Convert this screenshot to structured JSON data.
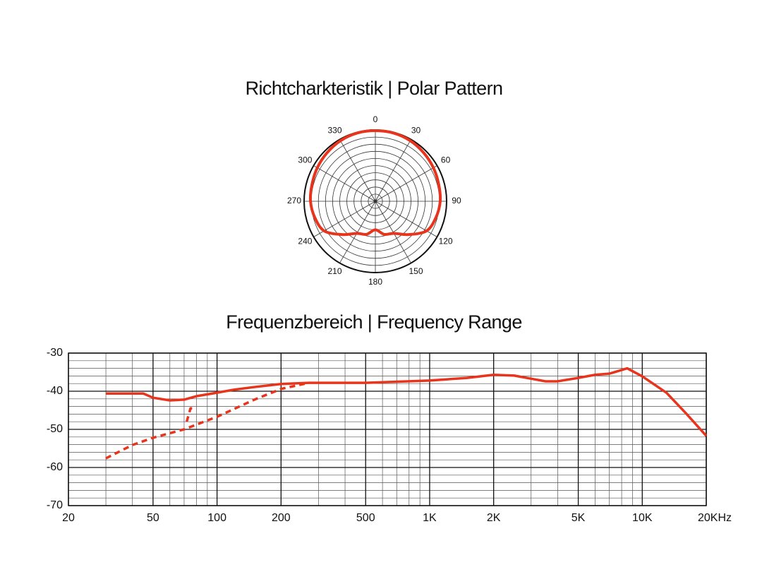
{
  "chart_data": [
    {
      "type": "polar",
      "title": "Richtcharkteristik | Polar Pattern",
      "angle_ticks": [
        0,
        30,
        60,
        90,
        120,
        150,
        180,
        210,
        240,
        270,
        300,
        330
      ],
      "rlim": [
        0,
        1
      ],
      "rticks": [
        0.1,
        0.2,
        0.3,
        0.4,
        0.5,
        0.6,
        0.7,
        0.8,
        0.9,
        1.0
      ],
      "angles": [
        0,
        15,
        30,
        45,
        60,
        75,
        90,
        105,
        120,
        135,
        150,
        165,
        180,
        195,
        210,
        225,
        240,
        255,
        270,
        285,
        300,
        315,
        330,
        345
      ],
      "values": [
        0.99,
        0.99,
        0.98,
        0.96,
        0.94,
        0.92,
        0.91,
        0.88,
        0.83,
        0.66,
        0.52,
        0.48,
        0.4,
        0.48,
        0.52,
        0.66,
        0.83,
        0.88,
        0.91,
        0.92,
        0.94,
        0.96,
        0.98,
        0.99
      ],
      "color": "#e8341c"
    },
    {
      "type": "line",
      "title": "Frequenzbereich | Frequency Range",
      "xscale": "log",
      "xlim": [
        20,
        20000
      ],
      "xticks": [
        20,
        50,
        100,
        200,
        500,
        {
          "value": 1000,
          "label": "1K"
        },
        {
          "value": 2000,
          "label": "2K"
        },
        {
          "value": 5000,
          "label": "5K"
        },
        {
          "value": 10000,
          "label": "10K"
        },
        {
          "value": 20000,
          "label": "20KHz"
        }
      ],
      "xminor": [
        30,
        40,
        60,
        70,
        80,
        90,
        300,
        400,
        600,
        700,
        800,
        900,
        3000,
        4000,
        6000,
        7000,
        8000,
        9000
      ],
      "ylim": [
        -70,
        -30
      ],
      "yticks": [
        -30,
        -40,
        -50,
        -60,
        -70
      ],
      "yminor": [
        -32,
        -34,
        -36,
        -38,
        -42,
        -44,
        -46,
        -48,
        -52,
        -54,
        -56,
        -58,
        -62,
        -64,
        -66,
        -68
      ],
      "grid": true,
      "series": [
        {
          "color": "#e8341c",
          "dash": false,
          "x": [
            30,
            45,
            50,
            60,
            70,
            80,
            100,
            120,
            150,
            200,
            270,
            500,
            1000,
            1500,
            2000,
            2500,
            3500,
            4000,
            5000,
            6000,
            7000,
            8500,
            10000,
            13000,
            16000,
            20000
          ],
          "values": [
            -40.6,
            -40.6,
            -41.7,
            -42.4,
            -42.2,
            -41.3,
            -40.4,
            -39.6,
            -38.9,
            -38.1,
            -37.8,
            -37.8,
            -37.2,
            -36.5,
            -35.7,
            -35.9,
            -37.4,
            -37.4,
            -36.5,
            -35.7,
            -35.4,
            -34.0,
            -36.1,
            -40.4,
            -45.7,
            -51.7
          ]
        },
        {
          "color": "#e8341c",
          "dash": true,
          "x": [
            30,
            40,
            50,
            70,
            100,
            150,
            200,
            270
          ],
          "values": [
            -57.6,
            -54.1,
            -52.2,
            -50.0,
            -46.7,
            -42.2,
            -39.4,
            -37.8
          ]
        },
        {
          "color": "#e8341c",
          "dash": true,
          "x": [
            72,
            75,
            80
          ],
          "values": [
            -48.0,
            -44.5,
            -44.5
          ]
        }
      ]
    }
  ]
}
